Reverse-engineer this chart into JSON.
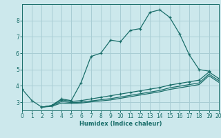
{
  "xlabel": "Humidex (Indice chaleur)",
  "bg_color": "#cce8ec",
  "grid_color": "#a8cdd4",
  "line_color": "#1a6e6a",
  "xlim": [
    0,
    20
  ],
  "ylim": [
    2.5,
    9.0
  ],
  "xticks": [
    0,
    1,
    2,
    3,
    4,
    5,
    6,
    7,
    8,
    9,
    10,
    11,
    12,
    13,
    14,
    15,
    16,
    17,
    18,
    19,
    20
  ],
  "yticks": [
    3,
    4,
    5,
    6,
    7,
    8
  ],
  "series": [
    {
      "x": [
        0,
        1,
        2,
        3,
        4,
        5,
        6,
        7,
        8,
        9,
        10,
        11,
        12,
        13,
        14,
        15,
        16,
        17,
        18,
        19
      ],
      "y": [
        3.8,
        3.1,
        2.7,
        2.8,
        3.2,
        3.1,
        4.2,
        5.8,
        6.0,
        6.8,
        6.7,
        7.4,
        7.5,
        8.5,
        8.65,
        8.2,
        7.2,
        5.9,
        5.0,
        4.9
      ],
      "marker": true
    },
    {
      "x": [
        2,
        3,
        4,
        5,
        6,
        7,
        8,
        9,
        10,
        11,
        12,
        13,
        14,
        15,
        16,
        17,
        18,
        19,
        20
      ],
      "y": [
        2.7,
        2.8,
        3.15,
        3.05,
        3.1,
        3.2,
        3.3,
        3.4,
        3.5,
        3.6,
        3.7,
        3.8,
        3.9,
        4.05,
        4.15,
        4.25,
        4.35,
        4.85,
        4.45
      ],
      "marker": true
    },
    {
      "x": [
        2,
        3,
        4,
        5,
        6,
        7,
        8,
        9,
        10,
        11,
        12,
        13,
        14,
        15,
        16,
        17,
        18,
        19,
        20
      ],
      "y": [
        2.7,
        2.78,
        3.05,
        2.98,
        3.0,
        3.08,
        3.15,
        3.22,
        3.32,
        3.42,
        3.52,
        3.62,
        3.72,
        3.88,
        3.98,
        4.08,
        4.18,
        4.72,
        4.32
      ],
      "marker": false
    },
    {
      "x": [
        2,
        3,
        4,
        5,
        6,
        7,
        8,
        9,
        10,
        11,
        12,
        13,
        14,
        15,
        16,
        17,
        18,
        19,
        20
      ],
      "y": [
        2.7,
        2.75,
        2.95,
        2.92,
        2.95,
        3.02,
        3.08,
        3.14,
        3.24,
        3.34,
        3.44,
        3.54,
        3.64,
        3.78,
        3.88,
        3.98,
        4.08,
        4.62,
        4.22
      ],
      "marker": false
    }
  ]
}
